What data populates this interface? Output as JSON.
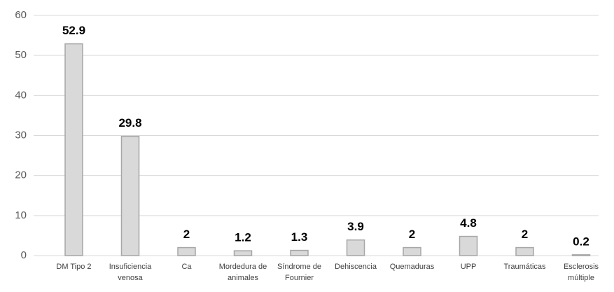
{
  "chart_data": {
    "type": "bar",
    "categories": [
      "DM Tipo 2",
      "Insuficiencia venosa",
      "Ca",
      "Mordedura de animales",
      "Síndrome de Fournier",
      "Dehiscencia",
      "Quemaduras",
      "UPP",
      "Traumáticas",
      "Esclerosis múltiple"
    ],
    "values": [
      52.9,
      29.8,
      2,
      1.2,
      1.3,
      3.9,
      2,
      4.8,
      2,
      0.2
    ],
    "color": "#d9d9d9",
    "ylim": [
      0,
      60
    ],
    "yticks": [
      0,
      10,
      20,
      30,
      40,
      50,
      60
    ],
    "grid": true
  }
}
